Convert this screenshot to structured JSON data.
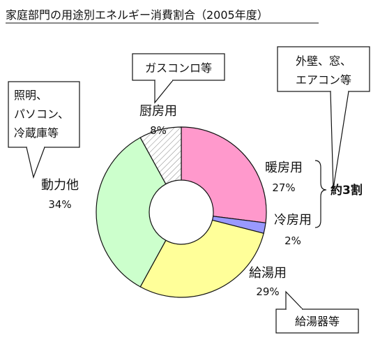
{
  "chart_data": {
    "type": "pie",
    "style": "donut",
    "title": "家庭部門の用途別エネルギー消費割合（2005年度）",
    "slices": [
      {
        "label": "暖房用",
        "value": 27,
        "value_label": "27%",
        "color": "#ff99cc"
      },
      {
        "label": "冷房用",
        "value": 2,
        "value_label": "2%",
        "color": "#9999ff"
      },
      {
        "label": "給湯用",
        "value": 29,
        "value_label": "29%",
        "color": "#ffff99"
      },
      {
        "label": "動力他",
        "value": 34,
        "value_label": "34%",
        "color": "#ccffcc"
      },
      {
        "label": "厨房用",
        "value": 8,
        "value_label": "8%",
        "color": "#ffffff",
        "pattern": "diagonal-hatch"
      }
    ],
    "group_annotation": {
      "text": "約3割",
      "members": [
        "暖房用",
        "冷房用"
      ]
    },
    "callouts": [
      {
        "target": "厨房用",
        "lines": [
          "ガスコンロ等"
        ]
      },
      {
        "target": "動力他",
        "lines": [
          "照明、",
          "パソコン、",
          "冷蔵庫等"
        ]
      },
      {
        "target": "暖房用",
        "lines": [
          "外壁、窓、",
          "エアコン等"
        ]
      },
      {
        "target": "給湯用",
        "lines": [
          "給湯器等"
        ]
      }
    ]
  }
}
